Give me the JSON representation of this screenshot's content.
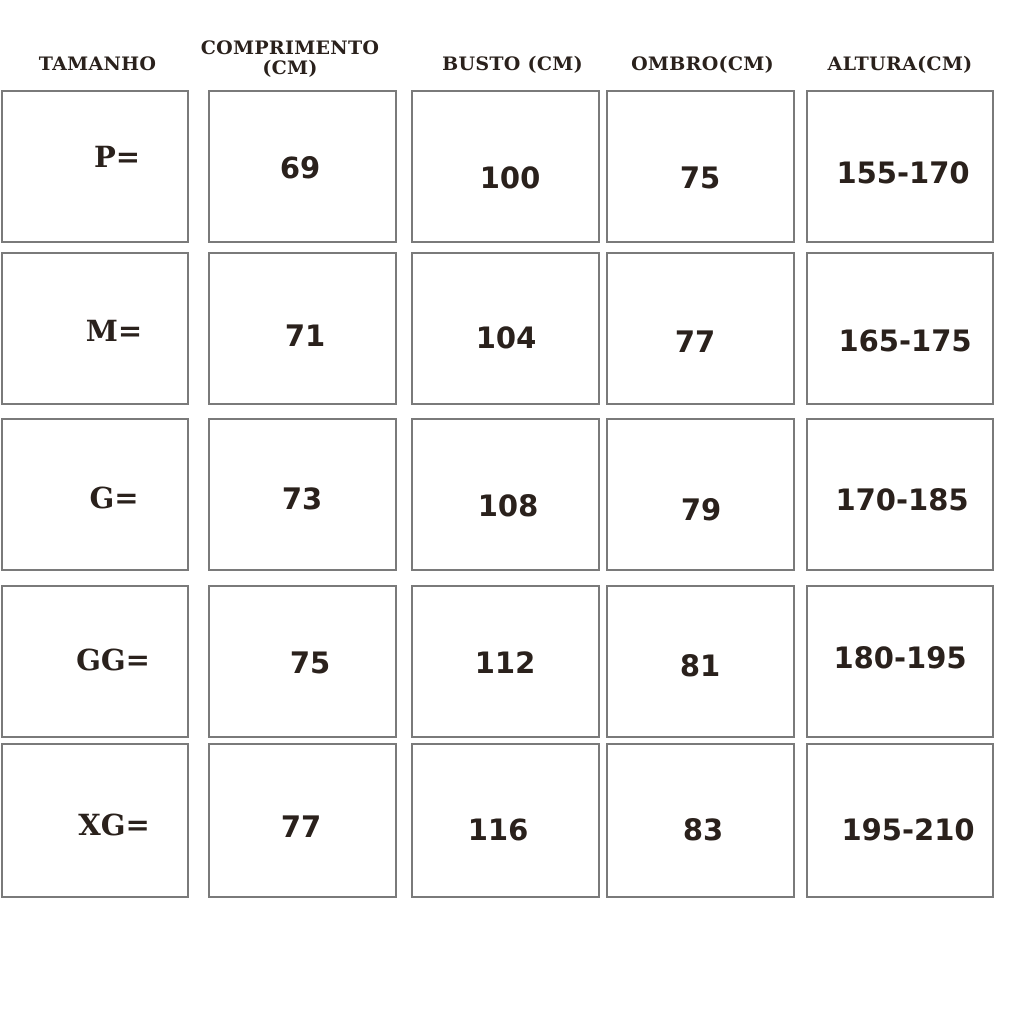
{
  "headers": [
    "TAMANHO",
    "COMPRIMENTO (CM)",
    "BUSTO (CM)",
    "OMBRO(CM)",
    "ALTURA(CM)"
  ],
  "rows": [
    {
      "tamanho": "P=",
      "comprimento": "69",
      "busto": "100",
      "ombro": "75",
      "altura": "155-170"
    },
    {
      "tamanho": "M=",
      "comprimento": "71",
      "busto": "104",
      "ombro": "77",
      "altura": "165-175"
    },
    {
      "tamanho": "G=",
      "comprimento": "73",
      "busto": "108",
      "ombro": "79",
      "altura": "170-185"
    },
    {
      "tamanho": "GG=",
      "comprimento": "75",
      "busto": "112",
      "ombro": "81",
      "altura": "180-195"
    },
    {
      "tamanho": "XG=",
      "comprimento": "77",
      "busto": "116",
      "ombro": "83",
      "altura": "195-210"
    }
  ]
}
